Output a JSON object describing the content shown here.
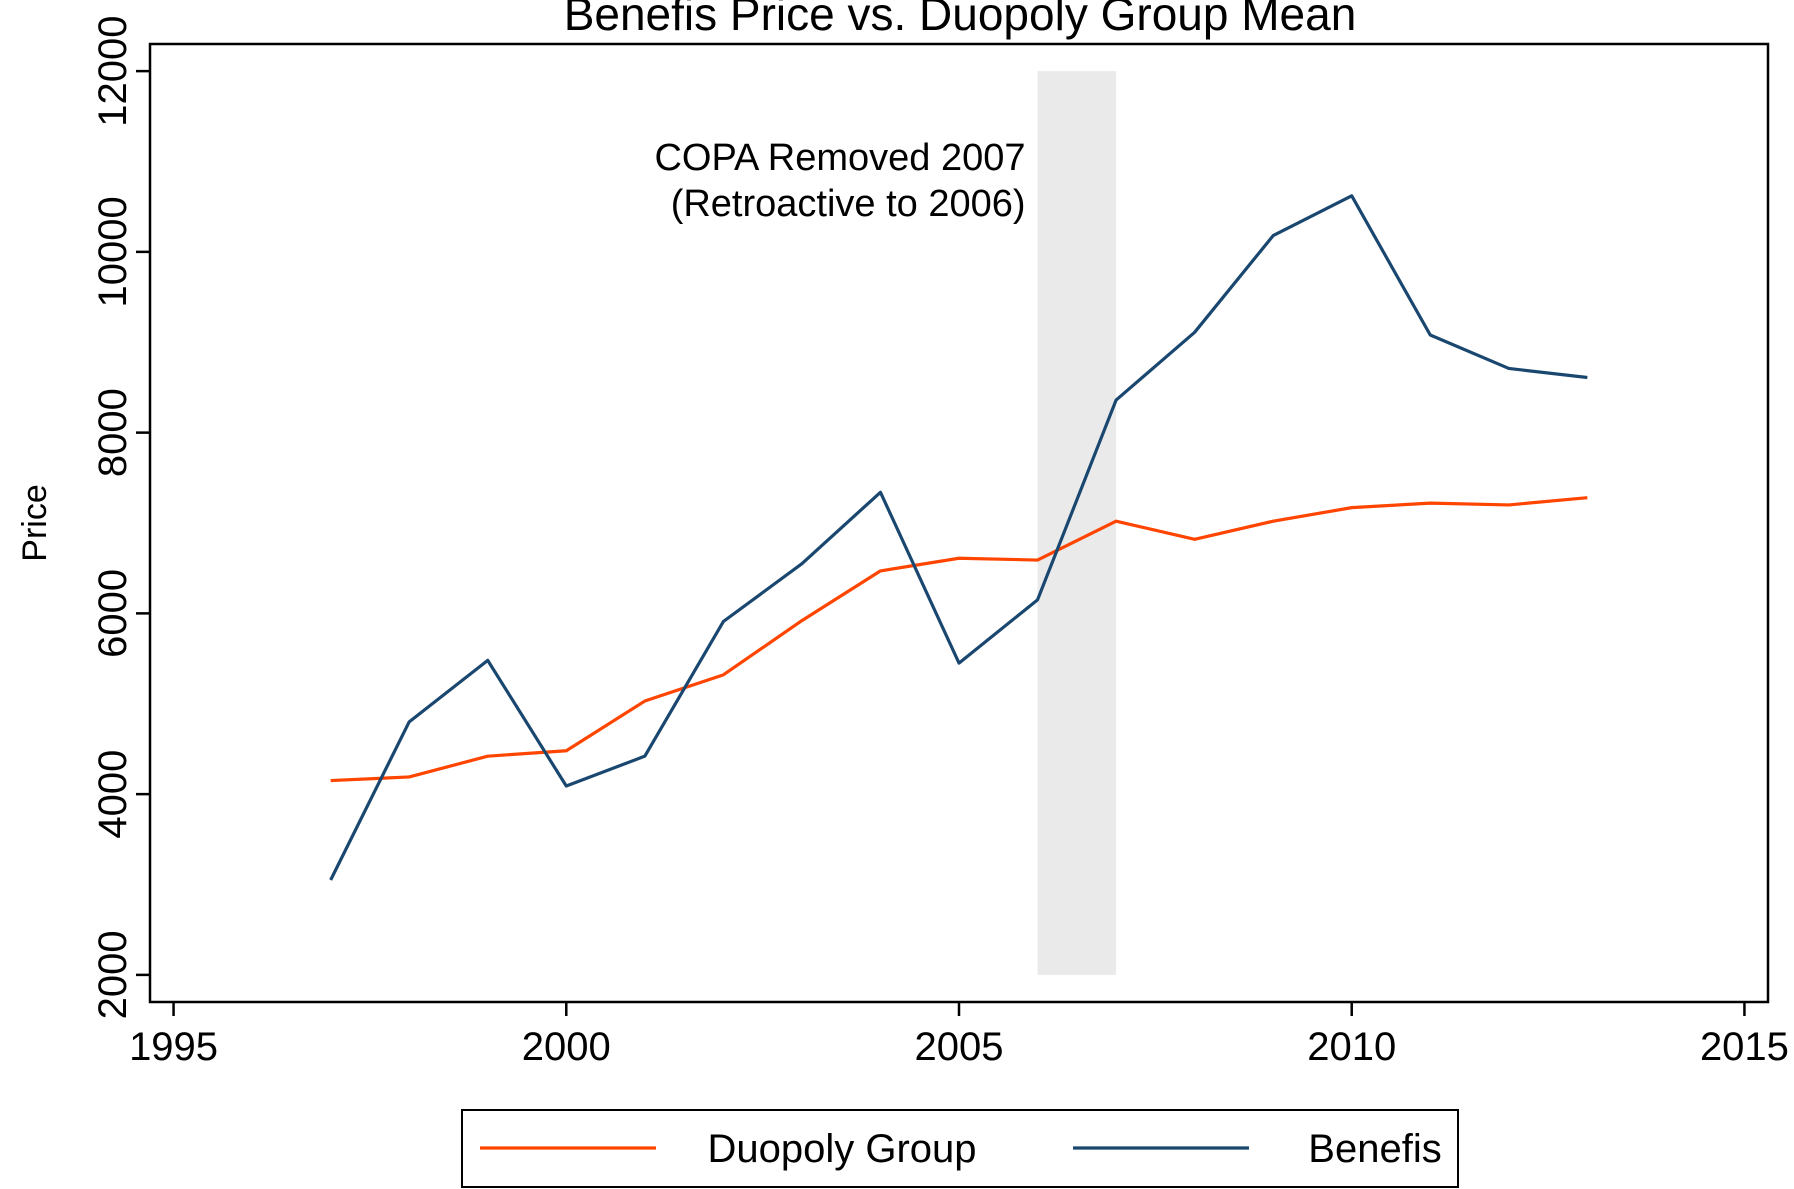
{
  "chart_data": {
    "type": "line",
    "title": "Benefis Price vs. Duopoly Group Mean",
    "y_label": "Price",
    "x": [
      1997,
      1998,
      1999,
      2000,
      2001,
      2002,
      2003,
      2004,
      2005,
      2006,
      2007,
      2008,
      2009,
      2010,
      2011,
      2012,
      2013
    ],
    "series": [
      {
        "name": "Duopoly Group",
        "color": "#ff4500",
        "values": [
          4150,
          4190,
          4420,
          4480,
          5030,
          5320,
          5920,
          6470,
          6610,
          6590,
          7020,
          6820,
          7020,
          7170,
          7220,
          7200,
          7280
        ]
      },
      {
        "name": "Benefis",
        "color": "#1a476f",
        "values": [
          3050,
          4800,
          5480,
          4090,
          4420,
          5910,
          6550,
          7340,
          5450,
          6150,
          8360,
          9110,
          10180,
          10620,
          9080,
          8710,
          8610
        ]
      }
    ],
    "shade": {
      "x": [
        2006,
        2007
      ],
      "y": [
        2000,
        12000
      ],
      "color": "#eaeaea"
    },
    "annotation": [
      "COPA Removed 2007",
      "(Retroactive to 2006)"
    ],
    "xlim": [
      1994.7,
      2015.3
    ],
    "ylim": [
      1700,
      12300
    ],
    "xticks": [
      1995,
      2000,
      2005,
      2010,
      2015
    ],
    "yticks": [
      2000,
      4000,
      6000,
      8000,
      10000,
      12000
    ],
    "grid": false,
    "legend": "bottom"
  }
}
